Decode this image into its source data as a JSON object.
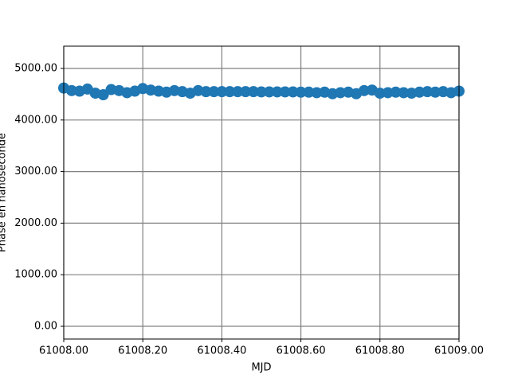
{
  "chart_data": {
    "type": "scatter",
    "x_label": "MJD",
    "y_label": "Phase en nanoseconde",
    "xlim": [
      61008.0,
      61009.0
    ],
    "ylim": [
      -247,
      5432
    ],
    "xticks": [
      {
        "value": 61008.0,
        "label": "61008.00"
      },
      {
        "value": 61008.2,
        "label": "61008.20"
      },
      {
        "value": 61008.4,
        "label": "61008.40"
      },
      {
        "value": 61008.6,
        "label": "61008.60"
      },
      {
        "value": 61008.8,
        "label": "61008.80"
      },
      {
        "value": 61009.0,
        "label": "61009.00"
      }
    ],
    "yticks": [
      {
        "value": 0,
        "label": "0.00"
      },
      {
        "value": 1000,
        "label": "1000.00"
      },
      {
        "value": 2000,
        "label": "2000.00"
      },
      {
        "value": 3000,
        "label": "3000.00"
      },
      {
        "value": 4000,
        "label": "4000.00"
      },
      {
        "value": 5000,
        "label": "5000.00"
      }
    ],
    "grid": true,
    "color": "#1f77b4",
    "x": [
      61008.0,
      61008.02,
      61008.04,
      61008.06,
      61008.08,
      61008.1,
      61008.12,
      61008.14,
      61008.16,
      61008.18,
      61008.2,
      61008.22,
      61008.24,
      61008.26,
      61008.28,
      61008.3,
      61008.32,
      61008.34,
      61008.36,
      61008.38,
      61008.4,
      61008.42,
      61008.44,
      61008.46,
      61008.48,
      61008.5,
      61008.52,
      61008.54,
      61008.56,
      61008.58,
      61008.6,
      61008.62,
      61008.64,
      61008.66,
      61008.68,
      61008.7,
      61008.72,
      61008.74,
      61008.76,
      61008.78,
      61008.8,
      61008.82,
      61008.84,
      61008.86,
      61008.88,
      61008.9,
      61008.92,
      61008.94,
      61008.96,
      61008.98,
      61009.0
    ],
    "values": [
      4620,
      4570,
      4560,
      4600,
      4520,
      4490,
      4590,
      4570,
      4530,
      4560,
      4610,
      4580,
      4560,
      4540,
      4570,
      4550,
      4520,
      4570,
      4550,
      4550,
      4550,
      4550,
      4550,
      4550,
      4550,
      4545,
      4545,
      4545,
      4545,
      4545,
      4540,
      4540,
      4530,
      4540,
      4510,
      4530,
      4540,
      4510,
      4570,
      4580,
      4520,
      4530,
      4540,
      4530,
      4520,
      4540,
      4550,
      4540,
      4550,
      4530,
      4560
    ]
  }
}
